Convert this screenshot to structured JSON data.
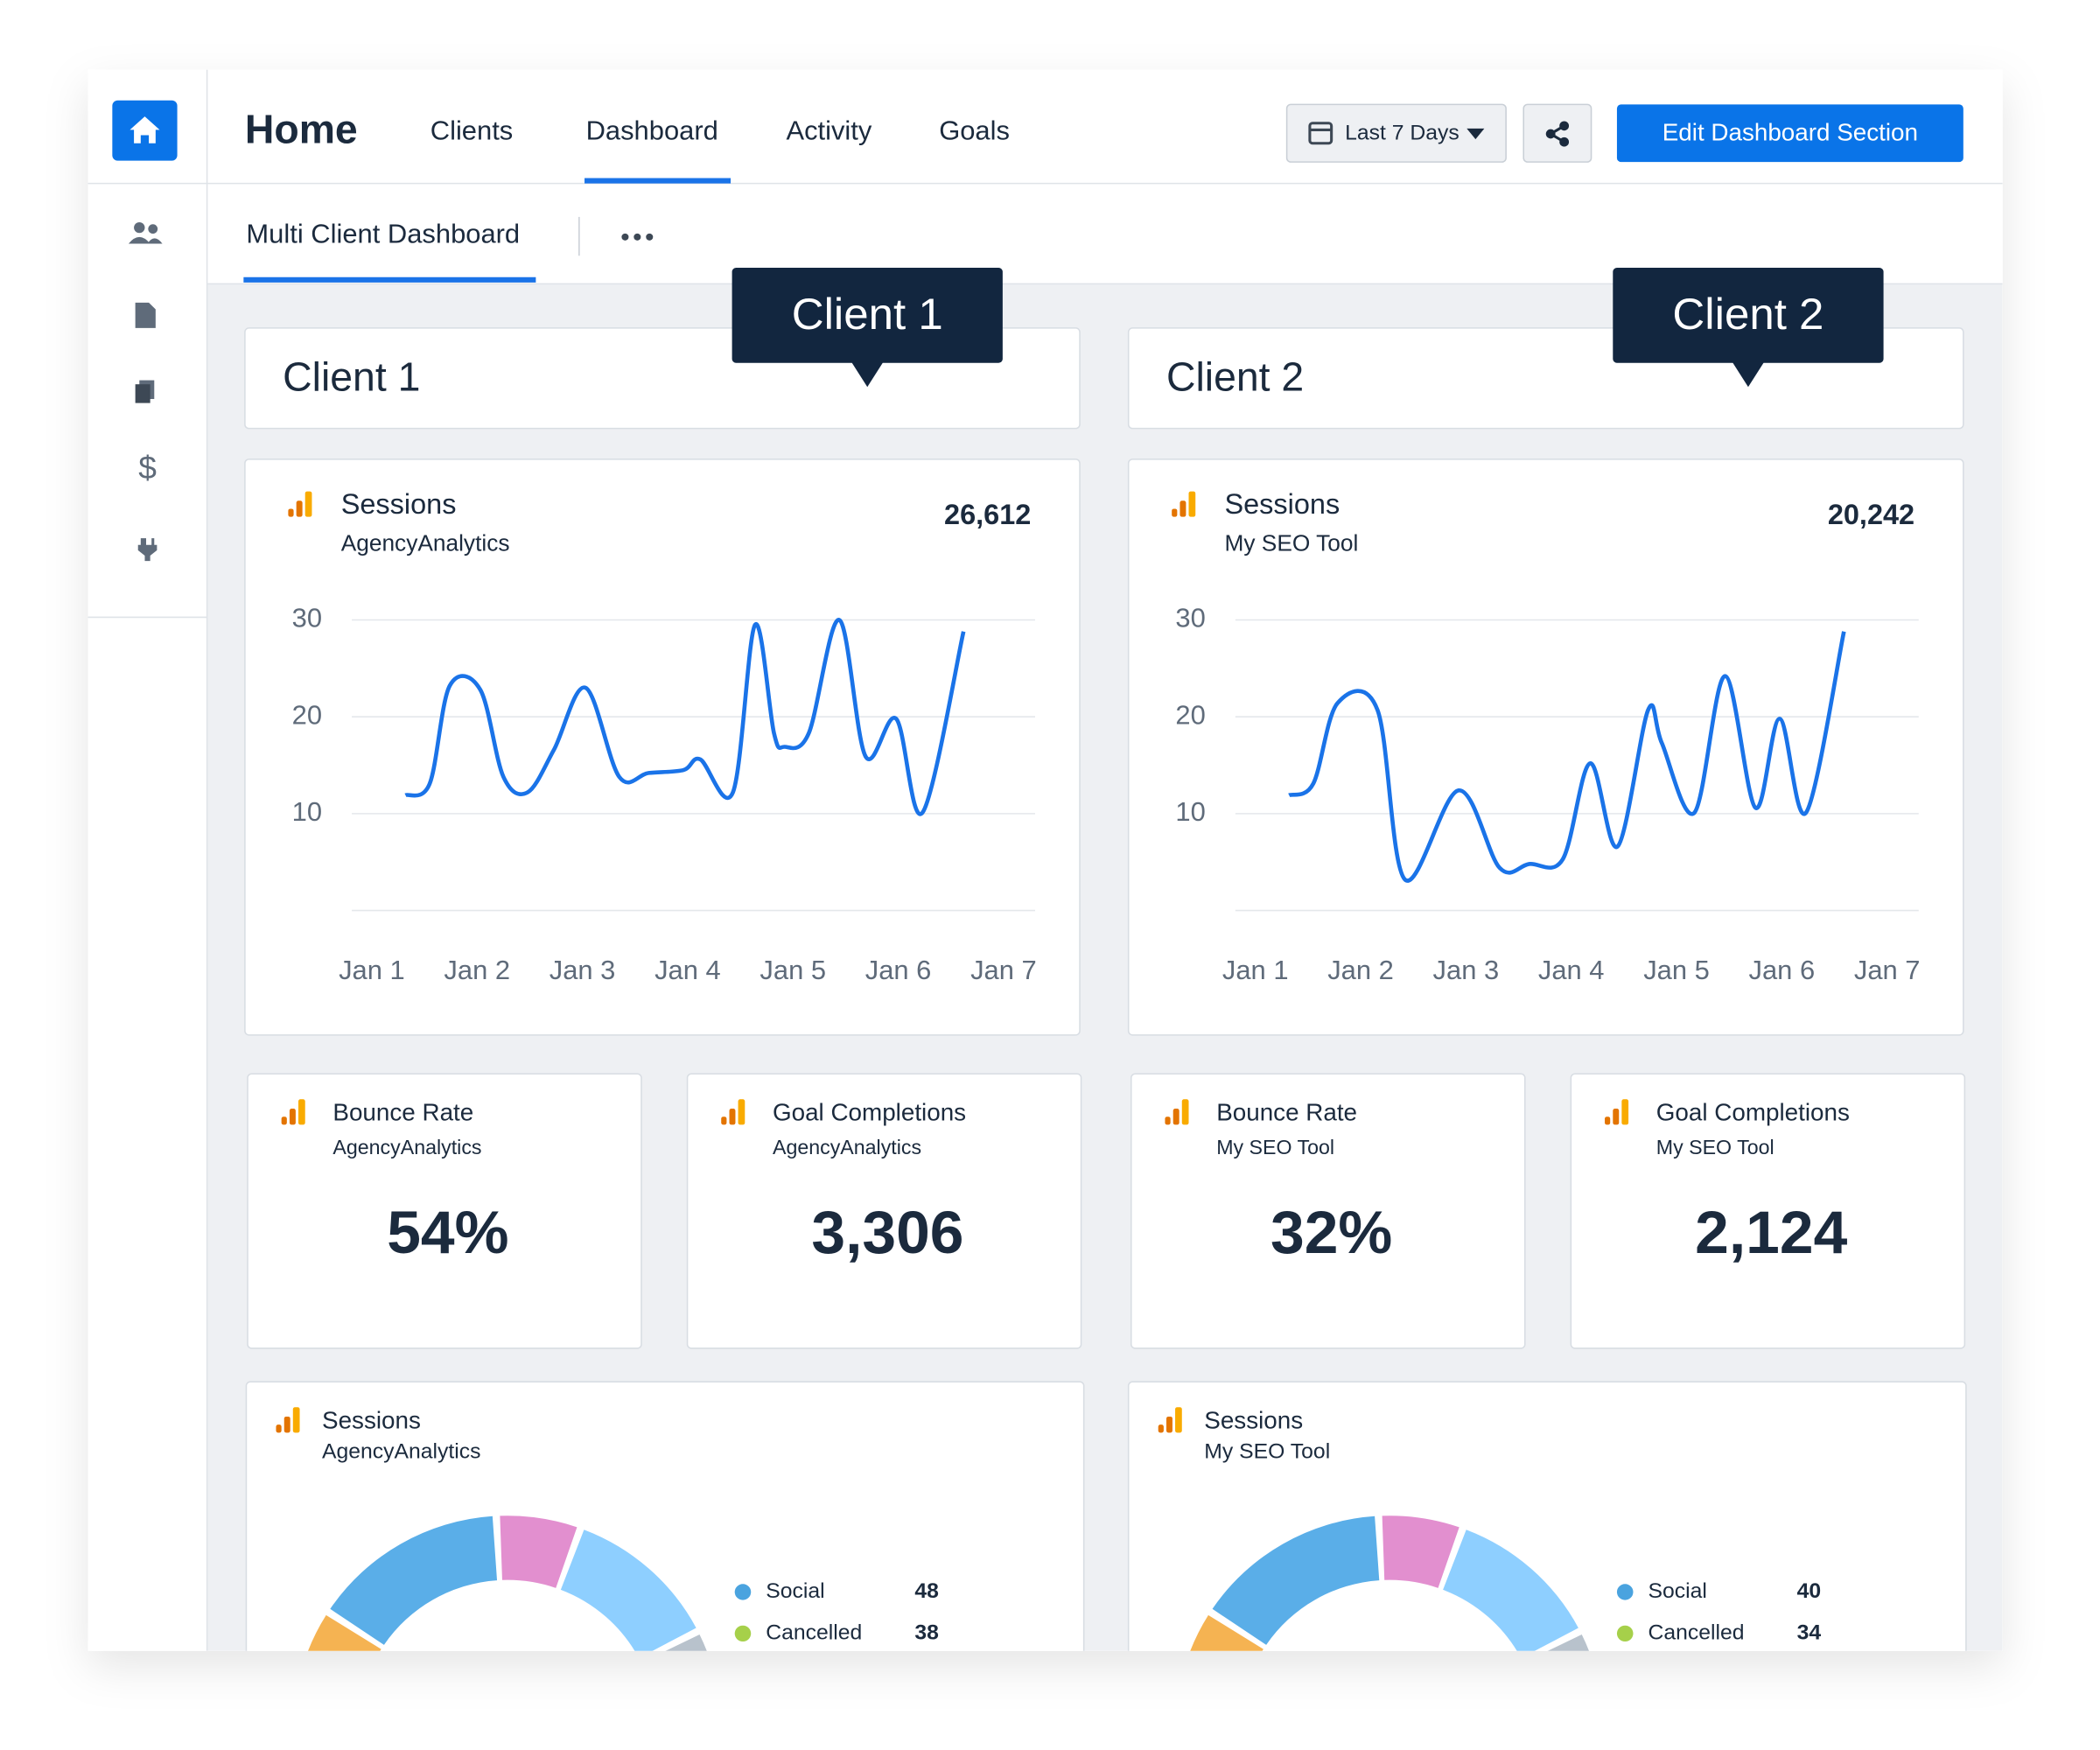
{
  "nav": {
    "title": "Home",
    "tabs": [
      "Clients",
      "Dashboard",
      "Activity",
      "Goals"
    ],
    "date_range": "Last 7 Days",
    "edit_button": "Edit Dashboard Section"
  },
  "subnav": {
    "tab": "Multi Client Dashboard"
  },
  "chart_data": [
    {
      "type": "line",
      "title": "Sessions",
      "subtitle": "AgencyAnalytics",
      "total": "26,612",
      "color": "#1a73e8",
      "xlim": [
        0.81,
        7.3
      ],
      "xticks": [
        {
          "value": 1,
          "label": "Jan 1"
        },
        {
          "value": 2,
          "label": "Jan 2"
        },
        {
          "value": 3,
          "label": "Jan 3"
        },
        {
          "value": 4,
          "label": "Jan 4"
        },
        {
          "value": 5,
          "label": "Jan 5"
        },
        {
          "value": 6,
          "label": "Jan 6"
        },
        {
          "value": 7,
          "label": "Jan 7"
        }
      ],
      "ylim": [
        0,
        30
      ],
      "yticks": [
        10,
        20,
        30
      ],
      "grid": true,
      "x": [
        1.32,
        1.55,
        1.74,
        2.03,
        2.25,
        2.48,
        2.73,
        3.03,
        3.35,
        3.63,
        3.96,
        4.12,
        4.43,
        4.64,
        4.82,
        4.92,
        5.15,
        5.44,
        5.69,
        5.98,
        6.23,
        6.62
      ],
      "values": [
        11.9,
        13.1,
        23.2,
        22.8,
        13.8,
        12.2,
        16.6,
        23.0,
        13.8,
        14.2,
        14.5,
        15.6,
        12.2,
        29.5,
        18.3,
        16.9,
        18.3,
        30.0,
        15.9,
        19.8,
        10.1,
        28.8
      ]
    },
    {
      "type": "line",
      "title": "Sessions",
      "subtitle": "My SEO Tool",
      "total": "20,242",
      "color": "#1a73e8",
      "xlim": [
        0.81,
        7.3
      ],
      "xticks": [
        {
          "value": 1,
          "label": "Jan 1"
        },
        {
          "value": 2,
          "label": "Jan 2"
        },
        {
          "value": 3,
          "label": "Jan 3"
        },
        {
          "value": 4,
          "label": "Jan 4"
        },
        {
          "value": 5,
          "label": "Jan 5"
        },
        {
          "value": 6,
          "label": "Jan 6"
        },
        {
          "value": 7,
          "label": "Jan 7"
        }
      ],
      "ylim": [
        0,
        30
      ],
      "yticks": [
        10,
        20,
        30
      ],
      "grid": true,
      "x": [
        1.32,
        1.55,
        1.78,
        2.16,
        2.42,
        2.93,
        3.32,
        3.6,
        3.92,
        4.18,
        4.44,
        4.73,
        4.86,
        5.17,
        5.46,
        5.75,
        5.98,
        6.23,
        6.59
      ],
      "values": [
        11.9,
        13.1,
        21.4,
        20.7,
        3.2,
        12.4,
        4.4,
        4.8,
        5.3,
        15.2,
        6.6,
        20.7,
        17.3,
        10.1,
        24.2,
        10.6,
        19.8,
        10.1,
        28.8
      ]
    }
  ],
  "clients": [
    {
      "name": "Client 1",
      "tooltip": "Client 1",
      "kpis": [
        {
          "title": "Bounce Rate",
          "source": "AgencyAnalytics",
          "value": "54%"
        },
        {
          "title": "Goal Completions",
          "source": "AgencyAnalytics",
          "value": "3,306"
        }
      ],
      "donut": {
        "title": "Sessions",
        "source": "AgencyAnalytics",
        "legend": [
          {
            "label": "Social",
            "value": 48,
            "color": "#4aa3df"
          },
          {
            "label": "Cancelled",
            "value": 38,
            "color": "#a6d04a"
          }
        ]
      }
    },
    {
      "name": "Client 2",
      "tooltip": "Client 2",
      "kpis": [
        {
          "title": "Bounce Rate",
          "source": "My SEO Tool",
          "value": "32%"
        },
        {
          "title": "Goal Completions",
          "source": "My SEO Tool",
          "value": "2,124"
        }
      ],
      "donut": {
        "title": "Sessions",
        "source": "My SEO Tool",
        "legend": [
          {
            "label": "Social",
            "value": 40,
            "color": "#4aa3df"
          },
          {
            "label": "Cancelled",
            "value": 34,
            "color": "#a6d04a"
          }
        ]
      }
    }
  ]
}
